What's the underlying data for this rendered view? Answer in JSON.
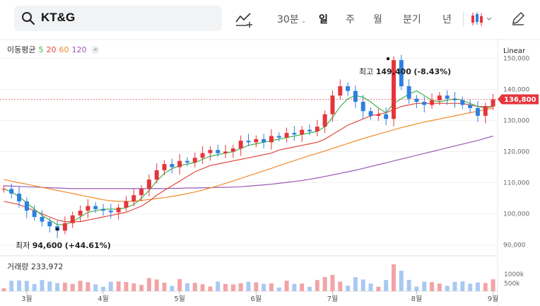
{
  "search": {
    "value": "KT&G"
  },
  "toolbar": {
    "periods": [
      {
        "label": "30분",
        "active": false
      },
      {
        "label": "일",
        "active": true
      },
      {
        "label": "주",
        "active": false
      },
      {
        "label": "월",
        "active": false
      },
      {
        "label": "분기",
        "active": false
      },
      {
        "label": "년",
        "active": false
      }
    ],
    "icons": [
      "search-icon",
      "drawing-tool-icon",
      "chevron-down-icon",
      "candle-type-icon",
      "edit-icon"
    ]
  },
  "ma_legend": {
    "label": "이동평균",
    "periods": [
      "5",
      "20",
      "60",
      "120"
    ],
    "colors": {
      "ma5": "#3db54a",
      "ma20": "#e04b3f",
      "ma60": "#f08c2a",
      "ma120": "#9b59b6"
    }
  },
  "scale_type": "Linear",
  "annotations": {
    "high": {
      "prefix": "최고",
      "value": "149,400",
      "change": "(-8.43%)"
    },
    "low": {
      "prefix": "최저",
      "value": "94,600",
      "change": "(+44.61%)"
    }
  },
  "current_price": {
    "label": "136,800",
    "value": 136800,
    "color": "#e5353b"
  },
  "volume": {
    "label": "거래량",
    "value": "233,972",
    "ticks": [
      "1000k",
      "500k"
    ]
  },
  "colors": {
    "up": "#e5353b",
    "down": "#2d7fe0",
    "volume_up": "#f2a3a6",
    "volume_down": "#a9c9f2"
  },
  "chart_data": {
    "type": "candlestick",
    "xlabel": "",
    "ylabel": "",
    "y_ticks": [
      "150,000",
      "140,000",
      "130,000",
      "120,000",
      "110,000",
      "100,000",
      "90,000"
    ],
    "x_ticks": [
      "3월",
      "4월",
      "5월",
      "6월",
      "7월",
      "8월",
      "9월"
    ],
    "ylim": [
      86500,
      156000
    ],
    "price_series": [
      108000,
      106500,
      104000,
      101000,
      99000,
      97500,
      96000,
      94600,
      97000,
      99500,
      101000,
      102500,
      101500,
      101000,
      100500,
      102000,
      104000,
      106000,
      108000,
      111000,
      114000,
      116000,
      115000,
      117000,
      116500,
      118000,
      119500,
      120500,
      119500,
      120000,
      121000,
      123500,
      123000,
      124000,
      123000,
      125000,
      124500,
      126000,
      125500,
      127000,
      126500,
      128000,
      132000,
      138000,
      141000,
      139500,
      136000,
      133000,
      131500,
      132000,
      130500,
      149400,
      141000,
      137000,
      136000,
      135000,
      136500,
      138000,
      137000,
      136500,
      135000,
      134000,
      131500,
      134500,
      136800
    ],
    "ma_series": {
      "ma5": [
        108000,
        107000,
        105500,
        103500,
        101500,
        99500,
        98000,
        96500,
        96500,
        97500,
        99000,
        100500,
        101000,
        101500,
        101500,
        101500,
        102000,
        103000,
        105000,
        107500,
        110500,
        113000,
        114500,
        115500,
        116000,
        116500,
        117500,
        118500,
        119000,
        119500,
        120000,
        121000,
        122000,
        122500,
        123000,
        123500,
        124000,
        124500,
        125000,
        125500,
        126000,
        126500,
        128000,
        131000,
        134500,
        137000,
        138000,
        137500,
        136000,
        134000,
        132500,
        135500,
        137000,
        138500,
        139500,
        138000,
        136500,
        136000,
        136500,
        137000,
        136500,
        135500,
        134500,
        134000,
        134500
      ],
      "ma20": [
        104000,
        103500,
        103000,
        102000,
        101000,
        100000,
        99000,
        98000,
        97500,
        97500,
        97500,
        98000,
        98500,
        99000,
        99500,
        100000,
        100500,
        101500,
        102500,
        104000,
        106000,
        107500,
        109000,
        110500,
        112000,
        113500,
        114500,
        115500,
        116000,
        116500,
        117000,
        117500,
        118000,
        118500,
        119000,
        119500,
        120500,
        121000,
        121500,
        122000,
        122500,
        123000,
        124000,
        125500,
        127000,
        128500,
        129500,
        130500,
        131500,
        132000,
        132500,
        133500,
        134500,
        135000,
        135500,
        135500,
        135500,
        135500,
        135500,
        135500,
        135500,
        135000,
        134500,
        134500,
        134500
      ],
      "ma60": [
        111000,
        110500,
        110000,
        109500,
        109000,
        108500,
        108000,
        107500,
        107000,
        106500,
        106000,
        105500,
        105000,
        104500,
        104200,
        104000,
        104000,
        104000,
        104300,
        104600,
        104900,
        105200,
        105600,
        106000,
        106500,
        107000,
        107600,
        108300,
        109000,
        109800,
        110600,
        111400,
        112200,
        113000,
        113800,
        114600,
        115500,
        116300,
        117100,
        117900,
        118700,
        119400,
        120200,
        121000,
        121800,
        122600,
        123400,
        124200,
        124900,
        125600,
        126300,
        127000,
        127700,
        128300,
        128900,
        129500,
        130000,
        130500,
        131000,
        131500,
        132000,
        132500,
        133000,
        133500,
        134000
      ],
      "ma120": [
        109000,
        108900,
        108800,
        108700,
        108600,
        108500,
        108400,
        108300,
        108200,
        108100,
        108100,
        108100,
        108100,
        108100,
        108100,
        108100,
        108100,
        108100,
        108100,
        108100,
        108100,
        108100,
        108200,
        108200,
        108300,
        108300,
        108400,
        108400,
        108500,
        108500,
        108600,
        108700,
        108900,
        109100,
        109300,
        109500,
        109800,
        110100,
        110400,
        110700,
        111100,
        111500,
        112000,
        112500,
        113000,
        113500,
        114000,
        114600,
        115200,
        115800,
        116400,
        117000,
        117600,
        118200,
        118800,
        119400,
        120000,
        120600,
        121200,
        121800,
        122400,
        123000,
        123600,
        124300,
        125000
      ]
    }
  }
}
